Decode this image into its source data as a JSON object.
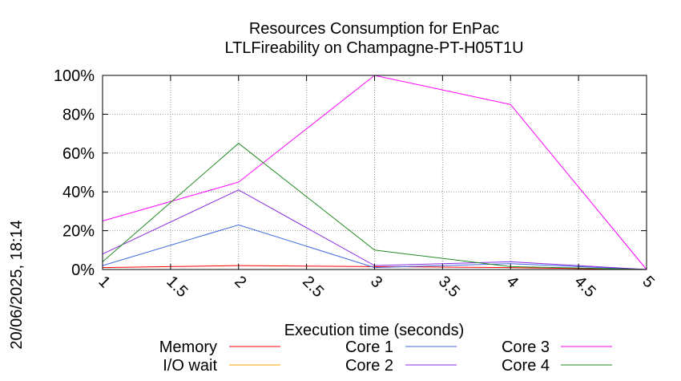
{
  "chart_data": {
    "type": "line",
    "title": [
      "Resources Consumption for EnPac",
      "LTLFireability on Champagne-PT-H05T1U"
    ],
    "xlabel": "Execution time (seconds)",
    "ylabel": "",
    "side_label": "20/06/2025, 18:14",
    "xlim": [
      1,
      5
    ],
    "ylim": [
      0,
      100
    ],
    "x_ticks": [
      1,
      1.5,
      2,
      2.5,
      3,
      3.5,
      4,
      4.5,
      5
    ],
    "x_tick_labels": [
      "1",
      "1.5",
      "2",
      "2.5",
      "3",
      "3.5",
      "4",
      "4.5",
      "5"
    ],
    "y_ticks": [
      0,
      20,
      40,
      60,
      80,
      100
    ],
    "y_tick_labels": [
      "0%",
      "20%",
      "40%",
      "60%",
      "80%",
      "100%"
    ],
    "grid": true,
    "legend_position": "bottom",
    "x": [
      1,
      2,
      3,
      4,
      5
    ],
    "series": [
      {
        "name": "Memory",
        "color": "#ff0000",
        "values": [
          1,
          2,
          1.5,
          1,
          0
        ]
      },
      {
        "name": "I/O wait",
        "color": "#ffa500",
        "values": [
          0,
          0,
          0,
          0,
          0
        ]
      },
      {
        "name": "Core 1",
        "color": "#4169e1",
        "values": [
          2,
          23,
          1,
          3,
          0
        ]
      },
      {
        "name": "Core 2",
        "color": "#8a2be2",
        "values": [
          8,
          41,
          2,
          4,
          0
        ]
      },
      {
        "name": "Core 3",
        "color": "#ff00ff",
        "values": [
          25,
          45,
          100,
          85,
          0
        ]
      },
      {
        "name": "Core 4",
        "color": "#228b22",
        "values": [
          4,
          65,
          10,
          1.5,
          0
        ]
      }
    ]
  }
}
